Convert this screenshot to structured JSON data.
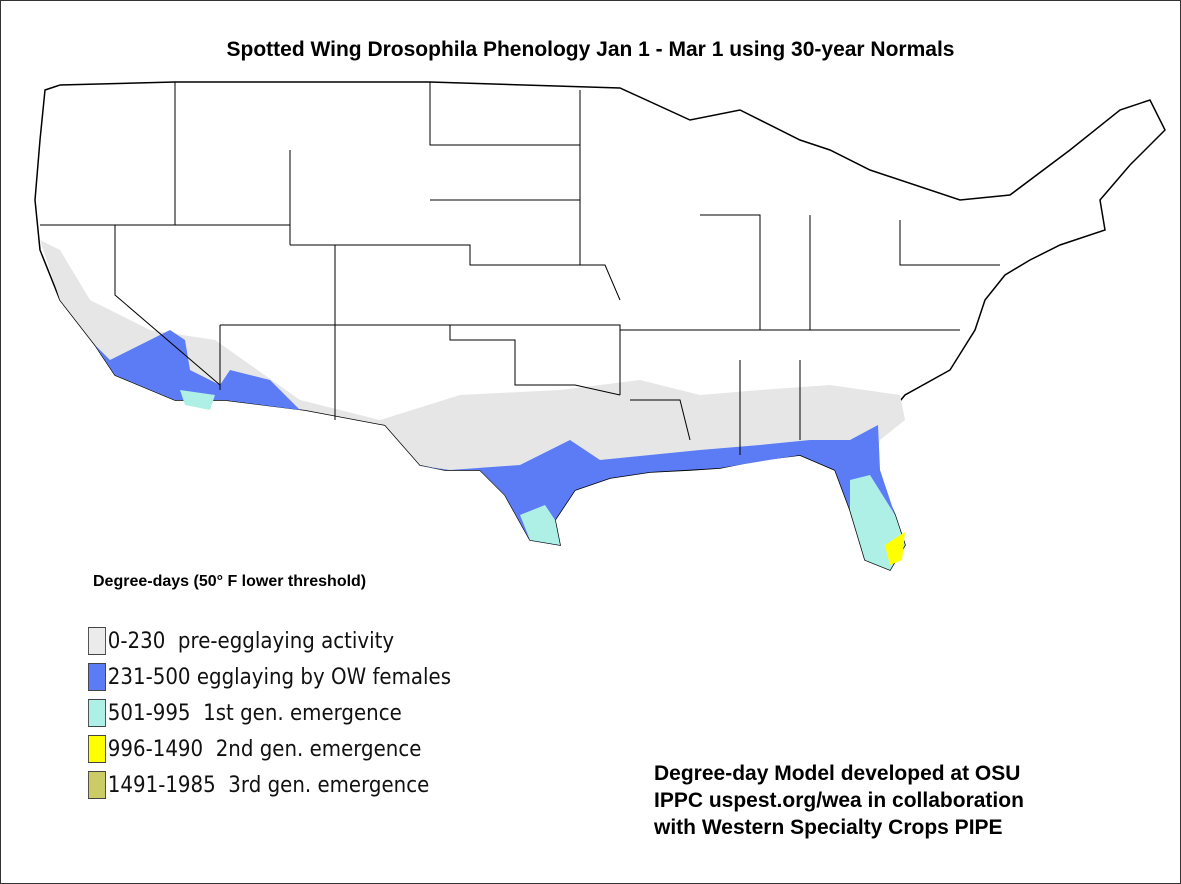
{
  "title": "Spotted Wing Drosophila Phenology Jan 1 - Mar 1 using 30-year Normals",
  "legend": {
    "title": "Degree-days (50° F lower threshold)",
    "items": [
      {
        "label": "0-230  pre-egglaying activity",
        "color": "#ebebeb"
      },
      {
        "label": "231-500 egglaying by OW females",
        "color": "#5b7cf5"
      },
      {
        "label": "501-995  1st gen. emergence",
        "color": "#aef0e6"
      },
      {
        "label": "996-1490  2nd gen. emergence",
        "color": "#ffff00"
      },
      {
        "label": "1491-1985  3rd gen. emergence",
        "color": "#cccc66"
      }
    ]
  },
  "credit": [
    "Degree-day Model developed at OSU",
    "IPPC uspest.org/wea in collaboration",
    "with Western Specialty Crops PIPE"
  ]
}
